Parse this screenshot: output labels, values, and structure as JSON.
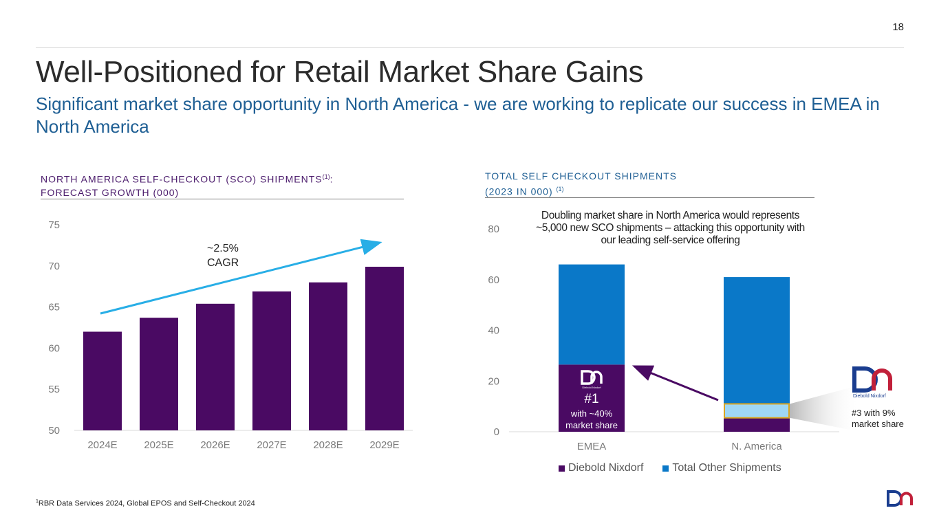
{
  "page": {
    "number": "18",
    "title": "Well-Positioned for Retail Market Share Gains",
    "subtitle": "Significant market share opportunity in North America - we are working to replicate our success in EMEA in North America",
    "footnote_sup": "1",
    "footnote": "RBR Data Services 2024, Global EPOS and Self-Checkout 2024"
  },
  "left_heading": {
    "line1": "NORTH AMERICA SELF-CHECKOUT (SCO) SHIPMENTS",
    "sup": "(1)",
    "line1_tail": ":",
    "line2": "FORECAST GROWTH (000)"
  },
  "right_heading": {
    "line1": "TOTAL SELF CHECKOUT SHIPMENTS",
    "line2": "(2023 IN 000) ",
    "sup": "(1)"
  },
  "callout": "Doubling market share in North America would represents ~5,000 new SCO shipments – attacking this opportunity with our leading self-service offering",
  "emea_rank": "#1",
  "emea_share": "with ~40% market share",
  "na_share": "#3 with 9% market share",
  "logo_caption": "Diebold Nixdorf",
  "colors": {
    "purple": "#4a0a63",
    "blue": "#0a78c8",
    "light_blue": "#28aee6",
    "highlight": "#9fd7f5",
    "gold": "#d9a520"
  },
  "chart_data": [
    {
      "type": "bar",
      "title": "NORTH AMERICA SELF-CHECKOUT (SCO) SHIPMENTS(1): FORECAST GROWTH (000)",
      "categories": [
        "2024E",
        "2025E",
        "2026E",
        "2027E",
        "2028E",
        "2029E"
      ],
      "values": [
        62.0,
        63.7,
        65.4,
        66.9,
        68.0,
        69.9
      ],
      "ylim": [
        50,
        75
      ],
      "yticks": [
        50,
        55,
        60,
        65,
        70,
        75
      ],
      "annotation": [
        "~2.5%",
        "CAGR"
      ],
      "xlabel": "",
      "ylabel": ""
    },
    {
      "type": "bar",
      "stacked": true,
      "title": "TOTAL SELF CHECKOUT SHIPMENTS (2023 IN 000) (1)",
      "categories": [
        "EMEA",
        "N. America"
      ],
      "series": [
        {
          "name": "Diebold Nixdorf",
          "values": [
            26.5,
            5.5
          ]
        },
        {
          "name": "Total Other Shipments",
          "values": [
            39.5,
            55.5
          ]
        }
      ],
      "ylim": [
        0,
        80
      ],
      "yticks": [
        0,
        20,
        40,
        60,
        80
      ],
      "legend": "bottom"
    }
  ]
}
